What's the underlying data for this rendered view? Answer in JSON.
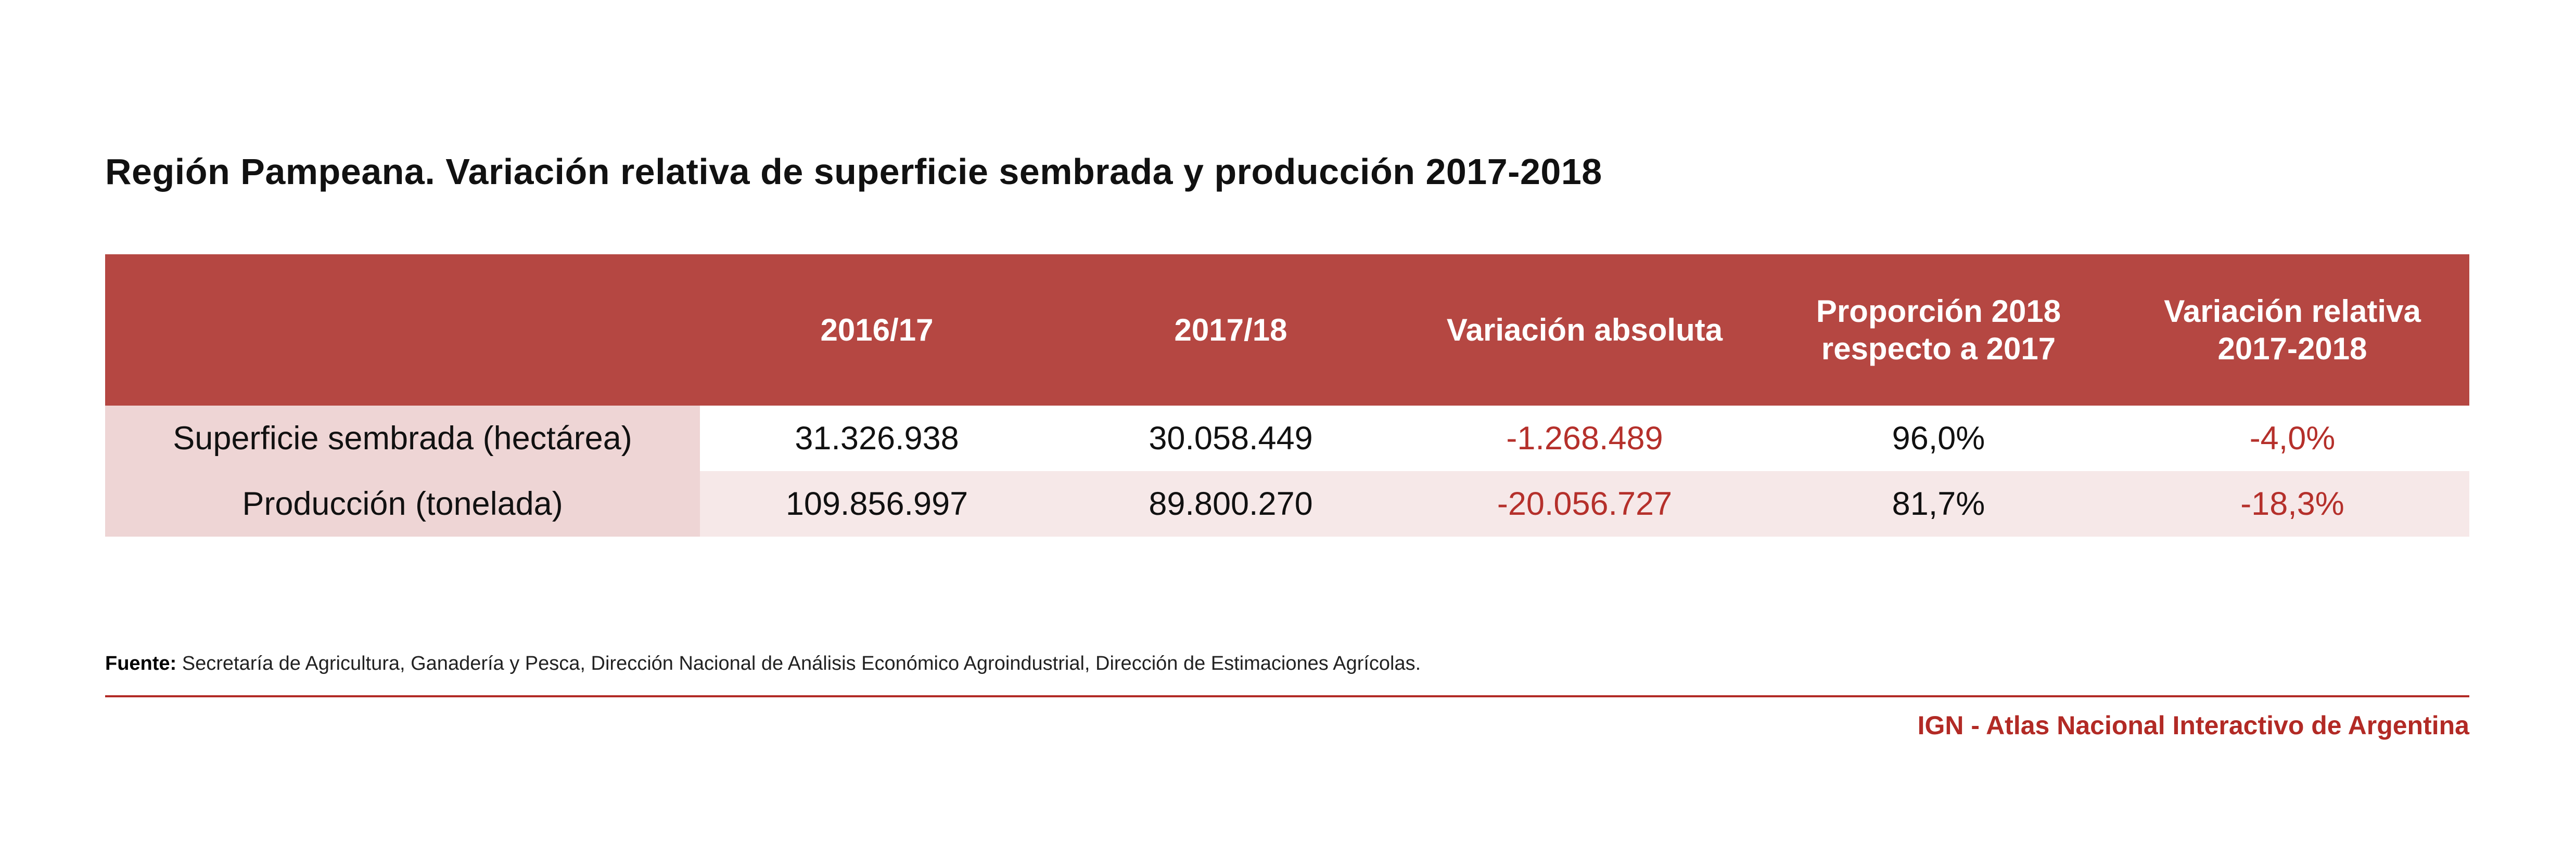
{
  "title": "Región Pampeana. Variación relativa de superficie sembrada y producción 2017-2018",
  "table": {
    "headers": [
      "",
      "2016/17",
      "2017/18",
      "Variación absoluta",
      "Proporción 2018 respecto a 2017",
      "Variación relativa 2017-2018"
    ],
    "rows": [
      {
        "label": "Superficie sembrada (hectárea)",
        "values": [
          "31.326.938",
          "30.058.449",
          "-1.268.489",
          "96,0%",
          "-4,0%"
        ]
      },
      {
        "label": "Producción (tonelada)",
        "values": [
          "109.856.997",
          "89.800.270",
          "-20.056.727",
          "81,7%",
          "-18,3%"
        ]
      }
    ]
  },
  "source": {
    "label": "Fuente:",
    "text": "Secretaría de Agricultura, Ganadería y Pesca, Dirección Nacional de Análisis Económico Agroindustrial, Dirección de Estimaciones Agrícolas."
  },
  "credit": "IGN - Atlas Nacional Interactivo de Argentina",
  "colors": {
    "header": "#b54742",
    "negative": "#b5302b",
    "label_bg": "#eed5d5",
    "alt_row": "#f6e8e8",
    "accent": "#b22a25"
  }
}
